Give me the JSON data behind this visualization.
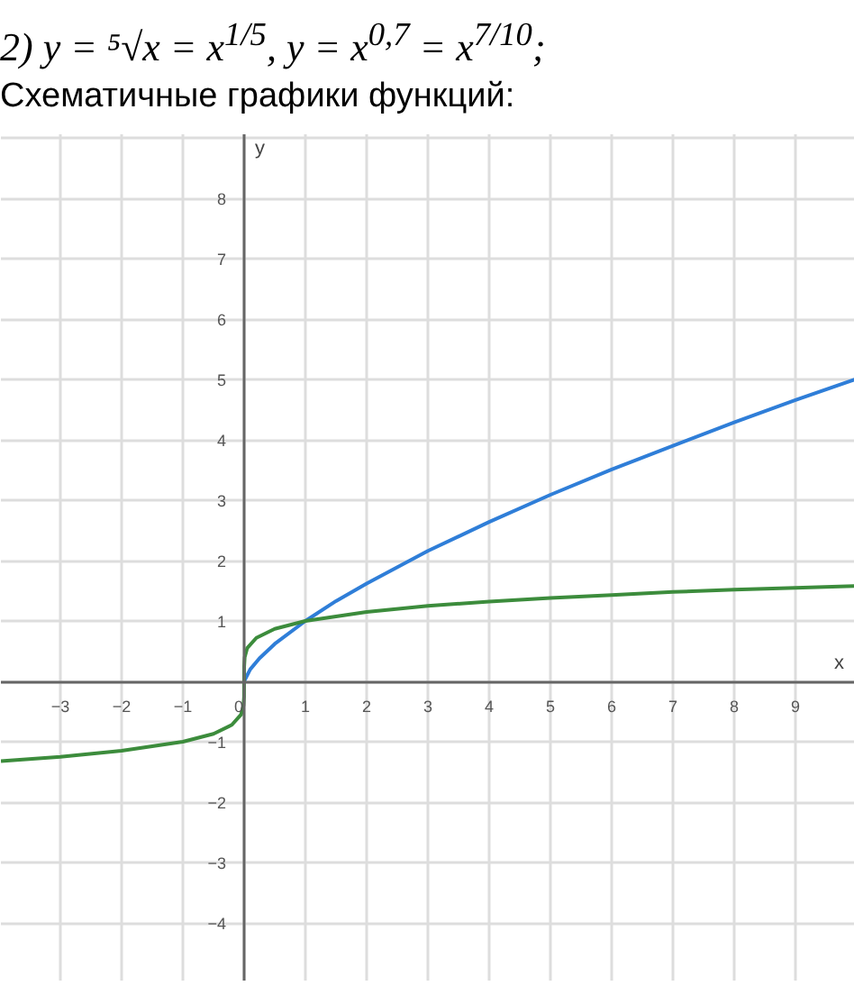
{
  "chart_data": {
    "type": "line",
    "title": "2) y = ⁵√x = x$^{1/5}$,  y = x$^{0,7}$ = x$^{7/10}$;",
    "subtitle": "Схематичные графики функций:",
    "xlabel": "x",
    "ylabel": "y",
    "series": [
      {
        "color": "#2f7ed8",
        "x": [
          0,
          0.1,
          0.25,
          0.5,
          1,
          1.5,
          2,
          3,
          4,
          5,
          6,
          7,
          8,
          9,
          9.97
        ],
        "values": [
          0,
          0.2,
          0.38,
          0.62,
          1,
          1.33,
          1.62,
          2.16,
          2.64,
          3.09,
          3.51,
          3.9,
          4.29,
          4.66,
          5.0
        ]
      },
      {
        "color": "#3c8c3c",
        "x": [
          -3.97,
          -3,
          -2,
          -1,
          -0.5,
          -0.2,
          -0.05,
          -0.01,
          -0.001,
          0,
          0.001,
          0.01,
          0.05,
          0.2,
          0.5,
          1,
          2,
          3,
          4,
          5,
          6,
          7,
          8,
          9,
          9.97
        ],
        "values": [
          -1.32,
          -1.25,
          -1.15,
          -1,
          -0.87,
          -0.72,
          -0.55,
          -0.4,
          -0.25,
          0,
          0.25,
          0.4,
          0.55,
          0.72,
          0.87,
          1,
          1.15,
          1.25,
          1.32,
          1.38,
          1.43,
          1.48,
          1.52,
          1.55,
          1.58
        ]
      }
    ],
    "xlim": [
      -3.97,
      9.97
    ],
    "ylim": [
      -4.97,
      9.06
    ],
    "xticks": [
      {
        "value": -3,
        "label": "−3"
      },
      {
        "value": -2,
        "label": "−2"
      },
      {
        "value": -1,
        "label": "−1"
      },
      0,
      1,
      2,
      3,
      4,
      5,
      6,
      7,
      8,
      9
    ],
    "yticks": [
      {
        "value": -4,
        "label": "−4"
      },
      {
        "value": -3,
        "label": "−3"
      },
      {
        "value": -2,
        "label": "−2"
      },
      {
        "value": -1,
        "label": "−1"
      },
      1,
      2,
      3,
      4,
      5,
      6,
      7,
      8
    ],
    "grid": true,
    "marker": "none",
    "line_style": "solid"
  }
}
